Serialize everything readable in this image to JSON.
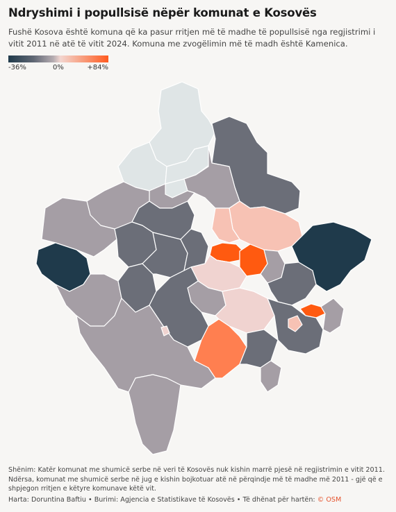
{
  "title": "Ndryshimi i popullsisë nëpër komunat e Kosovës",
  "subtitle": "Fushë Kosova është komuna që ka pasur rritjen më të madhe të popullsisë nga regjistrimi i vitit 2011 në atë të vitit 2024. Komuna me zvogëlimin më të madh është Kamenica.",
  "legend": {
    "min_label": "-36%",
    "mid_label": "0%",
    "max_label": "+84%",
    "min_value": -36,
    "max_value": 84,
    "colors": [
      "#1f3a4b",
      "#b6adb2",
      "#ff5a1f"
    ]
  },
  "map": {
    "no_data_color": "#dfe5e6",
    "region_colors": {
      "north": "#dfe5e6",
      "mid_grey": "#6b6e78",
      "light_mauve": "#a59ea5",
      "dark_blue": "#1f3a4b",
      "pink": "#f7c2b4",
      "orange_strong": "#ff5a10",
      "orange_mid": "#ff7f50",
      "pale_pink": "#f0d3d0"
    }
  },
  "note": "Shënim: Katër komunat me shumicë serbe në veri të Kosovës nuk kishin marrë pjesë në regjistrimin e vitit 2011. Ndërsa, komunat me shumicë serbe në jug e kishin bojkotuar atë në përqindje më të madhe më 2011 - gjë që e shpjegon rritjen e këtyre komunave këtë vit.",
  "credit": {
    "text": "Harta: Doruntina Baftiu • Burimi: Agjencia e Statistikave të Kosovës • Të dhënat për hartën: ",
    "osm": "© OSM"
  }
}
